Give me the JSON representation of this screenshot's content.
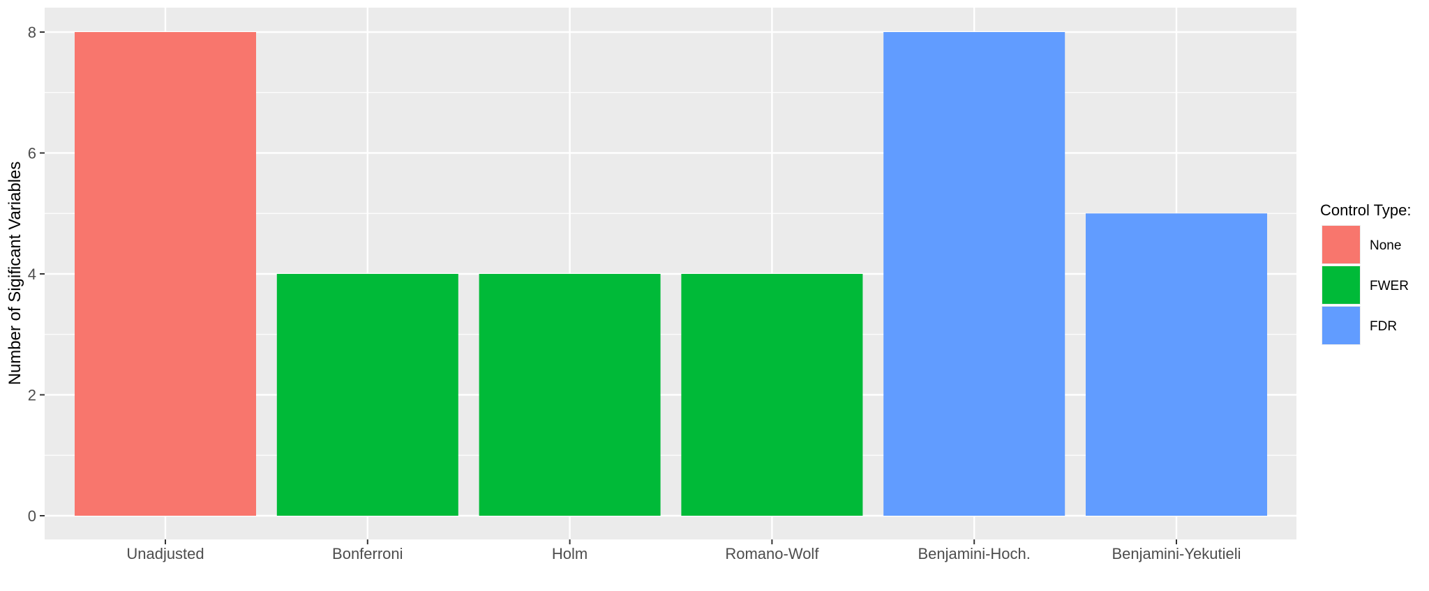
{
  "chart_data": {
    "type": "bar",
    "title": "",
    "xlabel": "",
    "ylabel": "Number of Sigificant Variables",
    "ylim": [
      0,
      8.4
    ],
    "yticks": [
      0,
      2,
      4,
      6,
      8
    ],
    "categories": [
      "Unadjusted",
      "Bonferroni",
      "Holm",
      "Romano-Wolf",
      "Benjamini-Hoch.",
      "Benjamini-Yekutieli"
    ],
    "values": [
      8,
      4,
      4,
      4,
      8,
      5
    ],
    "groups": [
      "None",
      "FWER",
      "FWER",
      "FWER",
      "FDR",
      "FDR"
    ],
    "grid": true,
    "legend": {
      "title": "Control Type:",
      "placement": "right",
      "entries": [
        {
          "label": "None",
          "color": "#F8766D"
        },
        {
          "label": "FWER",
          "color": "#00BA38"
        },
        {
          "label": "FDR",
          "color": "#619CFF"
        }
      ]
    },
    "colors": {
      "panel": "#EBEBEB",
      "grid": "#FFFFFF",
      "tick": "#333333"
    }
  }
}
